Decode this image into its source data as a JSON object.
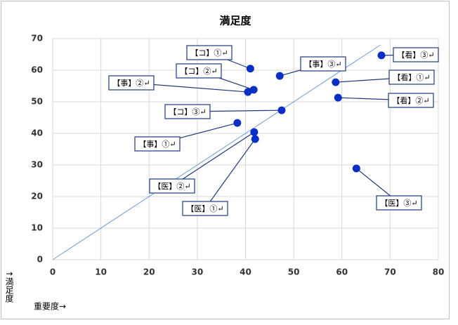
{
  "chart_data": {
    "type": "scatter",
    "title": "満足度",
    "x_label": "重要度→",
    "y_label": "↑満足度",
    "x": [
      41,
      41.7,
      40.5,
      47.1,
      68.2,
      58.7,
      59.2,
      47.5,
      38.3,
      41.8,
      42.0,
      63.0
    ],
    "values": [
      60.5,
      53.8,
      53.1,
      58.2,
      64.7,
      56.2,
      51.3,
      47.3,
      43.3,
      40.4,
      38.2,
      28.9
    ],
    "point_labels": [
      "【コ】①↵",
      "【コ】②↵",
      "【事】②↵",
      "【事】③↵",
      "【看】③↵",
      "【看】①↵",
      "【看】②↵",
      "【コ】③↵",
      "【事】①↵",
      "【医】②↵",
      "【医】①↵",
      "【医】③↵"
    ],
    "color": "#0a2fc4",
    "reference_line": {
      "x": [
        0,
        68
      ],
      "y": [
        0,
        68
      ],
      "color": "#6f9bd3"
    },
    "xlim": [
      0,
      80
    ],
    "xticks": [
      0,
      10,
      20,
      30,
      40,
      50,
      60,
      70,
      80
    ],
    "ylim": [
      0,
      70
    ],
    "yticks": [
      0,
      10,
      20,
      30,
      40,
      50,
      60,
      70
    ],
    "grid": true
  }
}
